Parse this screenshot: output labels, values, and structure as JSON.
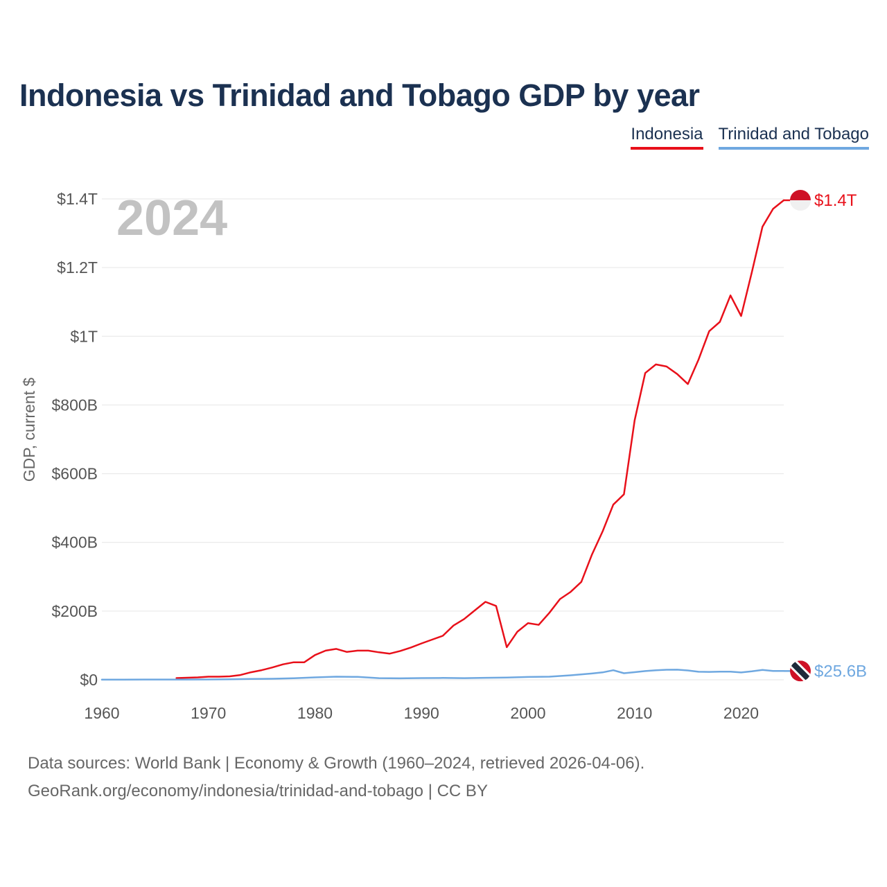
{
  "title": "Indonesia vs Trinidad and Tobago GDP by year",
  "legend": [
    {
      "name": "Indonesia",
      "color": "#e8101a"
    },
    {
      "name": "Trinidad and Tobago",
      "color": "#6fa8e0"
    }
  ],
  "year_watermark": "2024",
  "footer": {
    "line1": "Data sources: World Bank | Economy & Growth (1960–2024, retrieved 2026-04-06).",
    "line2": "GeoRank.org/economy/indonesia/trinidad-and-tobago | CC BY"
  },
  "chart_data": {
    "type": "line",
    "title": "Indonesia vs Trinidad and Tobago GDP by year",
    "xlabel": "",
    "ylabel": "GDP, current $",
    "xlim": [
      1960,
      2024
    ],
    "ylim": [
      0,
      1400
    ],
    "value_unit": "billions USD",
    "x_ticks": [
      1960,
      1970,
      1980,
      1990,
      2000,
      2010,
      2020
    ],
    "x_tick_labels": [
      "1960",
      "1970",
      "1980",
      "1990",
      "2000",
      "2010",
      "2020"
    ],
    "y_ticks": [
      0,
      200,
      400,
      600,
      800,
      1000,
      1200,
      1400
    ],
    "y_tick_labels": [
      "$0",
      "$200B",
      "$400B",
      "$600B",
      "$800B",
      "$1T",
      "$1.2T",
      "$1.4T"
    ],
    "grid": true,
    "legend_position": "top-right",
    "series": [
      {
        "name": "Indonesia",
        "color": "#e8101a",
        "end_label": "$1.4T",
        "x": [
          1967,
          1968,
          1969,
          1970,
          1971,
          1972,
          1973,
          1974,
          1975,
          1976,
          1977,
          1978,
          1979,
          1980,
          1981,
          1982,
          1983,
          1984,
          1985,
          1986,
          1987,
          1988,
          1989,
          1990,
          1991,
          1992,
          1993,
          1994,
          1995,
          1996,
          1997,
          1998,
          1999,
          2000,
          2001,
          2002,
          2003,
          2004,
          2005,
          2006,
          2007,
          2008,
          2009,
          2010,
          2011,
          2012,
          2013,
          2014,
          2015,
          2016,
          2017,
          2018,
          2019,
          2020,
          2021,
          2022,
          2023,
          2024
        ],
        "values": [
          5,
          6,
          7,
          9,
          9,
          10,
          14,
          22,
          28,
          36,
          45,
          51,
          51,
          72,
          85,
          90,
          81,
          85,
          85,
          80,
          76,
          84,
          94,
          106,
          117,
          128,
          158,
          177,
          202,
          227,
          215,
          95,
          140,
          165,
          160,
          195,
          235,
          256,
          285,
          365,
          432,
          510,
          540,
          755,
          893,
          918,
          912,
          890,
          861,
          932,
          1015,
          1042,
          1119,
          1059,
          1186,
          1319,
          1371,
          1396
        ]
      },
      {
        "name": "Trinidad and Tobago",
        "color": "#6fa8e0",
        "end_label": "$25.6B",
        "x": [
          1960,
          1962,
          1964,
          1966,
          1968,
          1970,
          1972,
          1974,
          1976,
          1978,
          1980,
          1982,
          1984,
          1986,
          1988,
          1990,
          1992,
          1994,
          1996,
          1998,
          2000,
          2002,
          2004,
          2006,
          2007,
          2008,
          2009,
          2010,
          2011,
          2012,
          2013,
          2014,
          2015,
          2016,
          2017,
          2018,
          2019,
          2020,
          2021,
          2022,
          2023,
          2024
        ],
        "values": [
          0.6,
          0.7,
          0.8,
          0.9,
          0.9,
          1,
          1.4,
          2.6,
          3,
          4.5,
          7,
          9,
          8.5,
          4.8,
          4.3,
          5.1,
          5.4,
          4.9,
          5.8,
          6.4,
          8.2,
          9,
          13.2,
          18.4,
          21.6,
          27.9,
          19.2,
          22.2,
          25.5,
          27.8,
          29.2,
          29.4,
          27.2,
          23.3,
          22.9,
          23.8,
          23.8,
          21.4,
          24.6,
          28.7,
          25.6,
          25.6
        ]
      }
    ]
  }
}
